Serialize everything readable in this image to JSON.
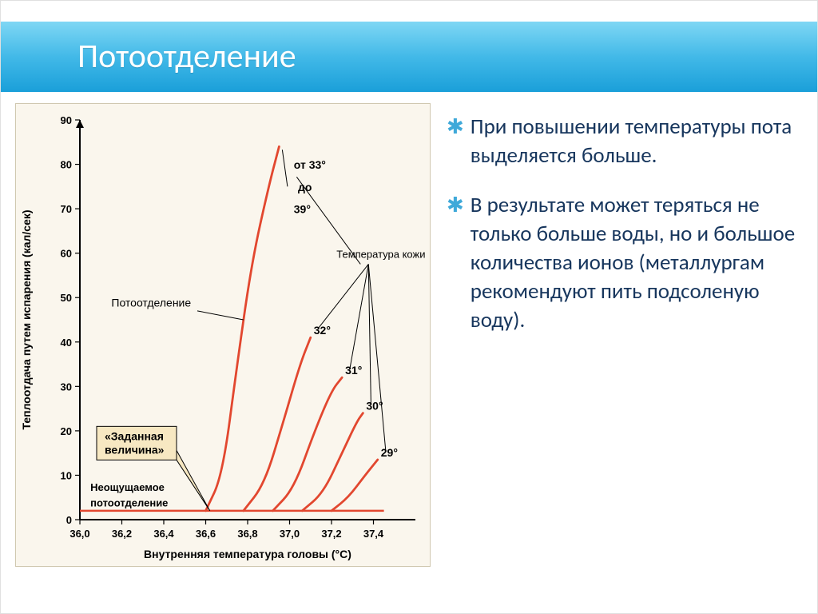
{
  "slide": {
    "title": "Потоотделение",
    "bullets": [
      "При повышении температуры пота выделяется больше.",
      "В результате может теряться не только больше воды, но и большое количества ионов (металлургам рекомендуют пить подсоленую воду)."
    ]
  },
  "chart": {
    "type": "line",
    "background_color": "#faf6ed",
    "axis_color": "#000000",
    "curve_color": "#e2472f",
    "base_line_color": "#e2472f",
    "callout_fill": "#f7e8c2",
    "xlabel": "Внутренняя температура головы (°C)",
    "ylabel": "Теплоотдача путем испарения (кал/сек)",
    "label_fontsize": 14,
    "tick_fontsize": 13,
    "xlim": [
      36.0,
      37.6
    ],
    "xticks": [
      36.0,
      36.2,
      36.4,
      36.6,
      36.8,
      37.0,
      37.2,
      37.4
    ],
    "xtick_labels": [
      "36,0",
      "36,2",
      "36,4",
      "36,6",
      "36,8",
      "37,0",
      "37,2",
      "37,4"
    ],
    "ylim": [
      0,
      90
    ],
    "yticks": [
      0,
      10,
      20,
      30,
      40,
      50,
      60,
      70,
      80,
      90
    ],
    "base_line_y": 2,
    "curves": [
      {
        "start_x": 36.6,
        "data": [
          [
            36.68,
            10
          ],
          [
            36.75,
            35
          ],
          [
            36.82,
            58
          ],
          [
            36.9,
            75
          ],
          [
            36.95,
            84
          ]
        ],
        "label": "от 33° до 39°"
      },
      {
        "start_x": 36.78,
        "data": [
          [
            36.88,
            8
          ],
          [
            36.97,
            22
          ],
          [
            37.05,
            35
          ],
          [
            37.1,
            41
          ]
        ],
        "label": "32°"
      },
      {
        "start_x": 36.92,
        "data": [
          [
            37.02,
            7
          ],
          [
            37.12,
            20
          ],
          [
            37.2,
            29
          ],
          [
            37.25,
            32
          ]
        ],
        "label": "31°"
      },
      {
        "start_x": 37.06,
        "data": [
          [
            37.16,
            6
          ],
          [
            37.25,
            15
          ],
          [
            37.32,
            22
          ],
          [
            37.35,
            24
          ]
        ],
        "label": "30°"
      },
      {
        "start_x": 37.2,
        "data": [
          [
            37.28,
            5
          ],
          [
            37.36,
            10
          ],
          [
            37.42,
            13.5
          ]
        ],
        "label": "29°"
      }
    ],
    "pointer_labels": {
      "sweating": "Потоотделение",
      "skin_temp": "Температура кожи",
      "set_value": "«Заданная величина»",
      "imperceptible": "Неощущаемое потоотделение"
    }
  }
}
